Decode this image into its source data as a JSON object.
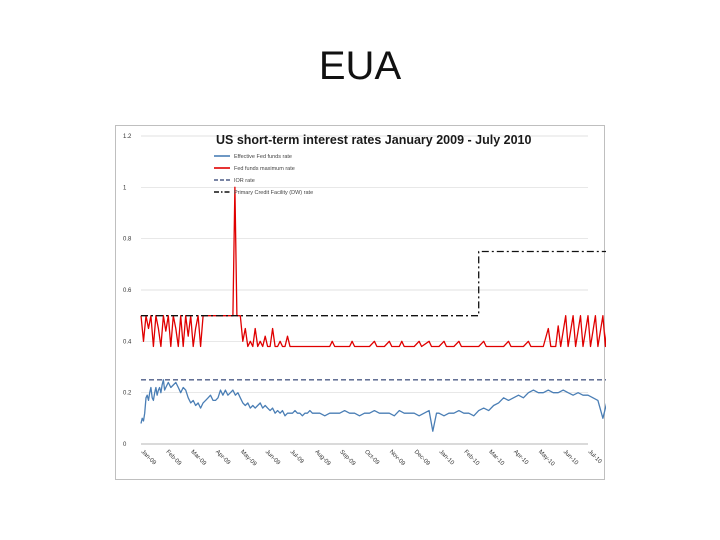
{
  "slide": {
    "title": "EUA"
  },
  "colors": {
    "effective": "#4a7eb5",
    "maximum": "#e00000",
    "ior": "#4e5d87",
    "pcf": "#111111",
    "grid": "#d9d9d9"
  },
  "chart_data": {
    "type": "line",
    "title": "US short-term interest rates January 2009 - July 2010",
    "xlabel": "",
    "ylabel": "",
    "ylim": [
      0,
      1.2
    ],
    "yticks": [
      "0",
      "0.2",
      "0.4",
      "0.6",
      "0.8",
      "1",
      "1.2"
    ],
    "grid": true,
    "legend_position": "top-left",
    "categories": [
      "Jan-09",
      "Feb-09",
      "Mar-09",
      "Apr-09",
      "May-09",
      "Jun-09",
      "Jul-09",
      "Aug-09",
      "Sep-09",
      "Oct-09",
      "Nov-09",
      "Dec-09",
      "Jan-10",
      "Feb-10",
      "Mar-10",
      "Apr-10",
      "May-10",
      "Jun-10",
      "Jul-10"
    ],
    "series": [
      {
        "name": "Effective Fed funds rate",
        "color": "#4a7eb5",
        "style": "solid",
        "values": [
          [
            0.0,
            0.08
          ],
          [
            0.05,
            0.1
          ],
          [
            0.1,
            0.09
          ],
          [
            0.15,
            0.12
          ],
          [
            0.2,
            0.18
          ],
          [
            0.25,
            0.19
          ],
          [
            0.3,
            0.17
          ],
          [
            0.35,
            0.2
          ],
          [
            0.4,
            0.22
          ],
          [
            0.45,
            0.18
          ],
          [
            0.5,
            0.17
          ],
          [
            0.55,
            0.2
          ],
          [
            0.6,
            0.22
          ],
          [
            0.65,
            0.19
          ],
          [
            0.7,
            0.21
          ],
          [
            0.75,
            0.22
          ],
          [
            0.8,
            0.2
          ],
          [
            0.85,
            0.23
          ],
          [
            0.9,
            0.25
          ],
          [
            0.95,
            0.21
          ],
          [
            1.0,
            0.22
          ],
          [
            1.1,
            0.24
          ],
          [
            1.2,
            0.22
          ],
          [
            1.3,
            0.23
          ],
          [
            1.4,
            0.24
          ],
          [
            1.5,
            0.22
          ],
          [
            1.6,
            0.2
          ],
          [
            1.7,
            0.22
          ],
          [
            1.8,
            0.21
          ],
          [
            1.9,
            0.18
          ],
          [
            2.0,
            0.16
          ],
          [
            2.1,
            0.17
          ],
          [
            2.2,
            0.15
          ],
          [
            2.3,
            0.16
          ],
          [
            2.4,
            0.14
          ],
          [
            2.5,
            0.16
          ],
          [
            2.6,
            0.17
          ],
          [
            2.7,
            0.18
          ],
          [
            2.8,
            0.19
          ],
          [
            2.9,
            0.17
          ],
          [
            3.0,
            0.17
          ],
          [
            3.1,
            0.18
          ],
          [
            3.2,
            0.21
          ],
          [
            3.3,
            0.19
          ],
          [
            3.4,
            0.21
          ],
          [
            3.5,
            0.19
          ],
          [
            3.6,
            0.2
          ],
          [
            3.7,
            0.21
          ],
          [
            3.8,
            0.19
          ],
          [
            3.9,
            0.2
          ],
          [
            4.0,
            0.18
          ],
          [
            4.1,
            0.16
          ],
          [
            4.2,
            0.15
          ],
          [
            4.3,
            0.16
          ],
          [
            4.4,
            0.14
          ],
          [
            4.5,
            0.15
          ],
          [
            4.6,
            0.14
          ],
          [
            4.7,
            0.15
          ],
          [
            4.8,
            0.16
          ],
          [
            4.9,
            0.14
          ],
          [
            5.0,
            0.15
          ],
          [
            5.1,
            0.14
          ],
          [
            5.2,
            0.13
          ],
          [
            5.3,
            0.14
          ],
          [
            5.4,
            0.12
          ],
          [
            5.5,
            0.13
          ],
          [
            5.6,
            0.12
          ],
          [
            5.7,
            0.13
          ],
          [
            5.8,
            0.11
          ],
          [
            5.9,
            0.12
          ],
          [
            6.0,
            0.12
          ],
          [
            6.1,
            0.12
          ],
          [
            6.2,
            0.13
          ],
          [
            6.3,
            0.12
          ],
          [
            6.4,
            0.12
          ],
          [
            6.5,
            0.11
          ],
          [
            6.6,
            0.12
          ],
          [
            6.7,
            0.12
          ],
          [
            6.8,
            0.13
          ],
          [
            6.9,
            0.12
          ],
          [
            7.0,
            0.12
          ],
          [
            7.2,
            0.12
          ],
          [
            7.4,
            0.11
          ],
          [
            7.6,
            0.12
          ],
          [
            7.8,
            0.12
          ],
          [
            8.0,
            0.12
          ],
          [
            8.2,
            0.13
          ],
          [
            8.4,
            0.12
          ],
          [
            8.6,
            0.12
          ],
          [
            8.8,
            0.11
          ],
          [
            9.0,
            0.12
          ],
          [
            9.2,
            0.12
          ],
          [
            9.4,
            0.13
          ],
          [
            9.6,
            0.12
          ],
          [
            9.8,
            0.12
          ],
          [
            10.0,
            0.12
          ],
          [
            10.2,
            0.11
          ],
          [
            10.4,
            0.13
          ],
          [
            10.6,
            0.12
          ],
          [
            10.8,
            0.12
          ],
          [
            11.0,
            0.12
          ],
          [
            11.2,
            0.11
          ],
          [
            11.4,
            0.12
          ],
          [
            11.6,
            0.13
          ],
          [
            11.75,
            0.05
          ],
          [
            11.9,
            0.12
          ],
          [
            12.0,
            0.12
          ],
          [
            12.2,
            0.11
          ],
          [
            12.4,
            0.12
          ],
          [
            12.6,
            0.12
          ],
          [
            12.8,
            0.13
          ],
          [
            13.0,
            0.12
          ],
          [
            13.2,
            0.12
          ],
          [
            13.4,
            0.11
          ],
          [
            13.6,
            0.13
          ],
          [
            13.8,
            0.14
          ],
          [
            14.0,
            0.13
          ],
          [
            14.2,
            0.15
          ],
          [
            14.4,
            0.16
          ],
          [
            14.6,
            0.18
          ],
          [
            14.8,
            0.17
          ],
          [
            15.0,
            0.18
          ],
          [
            15.2,
            0.19
          ],
          [
            15.4,
            0.18
          ],
          [
            15.6,
            0.2
          ],
          [
            15.8,
            0.21
          ],
          [
            16.0,
            0.2
          ],
          [
            16.2,
            0.2
          ],
          [
            16.4,
            0.21
          ],
          [
            16.6,
            0.2
          ],
          [
            16.8,
            0.2
          ],
          [
            17.0,
            0.21
          ],
          [
            17.2,
            0.2
          ],
          [
            17.4,
            0.19
          ],
          [
            17.6,
            0.2
          ],
          [
            17.8,
            0.19
          ],
          [
            18.0,
            0.19
          ],
          [
            18.2,
            0.18
          ],
          [
            18.4,
            0.17
          ],
          [
            18.6,
            0.1
          ],
          [
            18.8,
            0.18
          ],
          [
            19.0,
            0.18
          ]
        ]
      },
      {
        "name": "Fed funds maximum rate",
        "color": "#e00000",
        "style": "solid",
        "values": [
          [
            0.0,
            0.5
          ],
          [
            0.1,
            0.4
          ],
          [
            0.2,
            0.5
          ],
          [
            0.3,
            0.45
          ],
          [
            0.4,
            0.5
          ],
          [
            0.5,
            0.38
          ],
          [
            0.6,
            0.5
          ],
          [
            0.7,
            0.45
          ],
          [
            0.8,
            0.38
          ],
          [
            0.9,
            0.5
          ],
          [
            1.0,
            0.44
          ],
          [
            1.1,
            0.5
          ],
          [
            1.2,
            0.38
          ],
          [
            1.3,
            0.5
          ],
          [
            1.4,
            0.45
          ],
          [
            1.5,
            0.38
          ],
          [
            1.6,
            0.5
          ],
          [
            1.7,
            0.38
          ],
          [
            1.8,
            0.5
          ],
          [
            1.9,
            0.42
          ],
          [
            2.0,
            0.5
          ],
          [
            2.1,
            0.38
          ],
          [
            2.2,
            0.45
          ],
          [
            2.3,
            0.5
          ],
          [
            2.4,
            0.38
          ],
          [
            2.5,
            0.5
          ],
          [
            2.6,
            0.5
          ],
          [
            2.8,
            0.5
          ],
          [
            3.0,
            0.5
          ],
          [
            3.2,
            0.5
          ],
          [
            3.4,
            0.5
          ],
          [
            3.6,
            0.5
          ],
          [
            3.7,
            0.5
          ],
          [
            3.78,
            1.0
          ],
          [
            3.86,
            0.5
          ],
          [
            4.0,
            0.5
          ],
          [
            4.1,
            0.4
          ],
          [
            4.2,
            0.45
          ],
          [
            4.3,
            0.38
          ],
          [
            4.4,
            0.4
          ],
          [
            4.5,
            0.38
          ],
          [
            4.6,
            0.45
          ],
          [
            4.7,
            0.38
          ],
          [
            4.8,
            0.4
          ],
          [
            4.9,
            0.38
          ],
          [
            5.0,
            0.42
          ],
          [
            5.1,
            0.38
          ],
          [
            5.2,
            0.38
          ],
          [
            5.3,
            0.45
          ],
          [
            5.4,
            0.38
          ],
          [
            5.5,
            0.38
          ],
          [
            5.6,
            0.4
          ],
          [
            5.7,
            0.38
          ],
          [
            5.8,
            0.38
          ],
          [
            5.9,
            0.42
          ],
          [
            6.0,
            0.38
          ],
          [
            6.1,
            0.38
          ],
          [
            6.2,
            0.38
          ],
          [
            6.4,
            0.38
          ],
          [
            6.6,
            0.38
          ],
          [
            6.8,
            0.38
          ],
          [
            7.0,
            0.38
          ],
          [
            7.2,
            0.38
          ],
          [
            7.4,
            0.38
          ],
          [
            7.6,
            0.38
          ],
          [
            7.7,
            0.4
          ],
          [
            7.8,
            0.38
          ],
          [
            8.0,
            0.38
          ],
          [
            8.4,
            0.38
          ],
          [
            8.5,
            0.4
          ],
          [
            8.6,
            0.38
          ],
          [
            9.0,
            0.38
          ],
          [
            9.2,
            0.38
          ],
          [
            9.4,
            0.4
          ],
          [
            9.5,
            0.38
          ],
          [
            9.6,
            0.38
          ],
          [
            9.8,
            0.38
          ],
          [
            10.0,
            0.4
          ],
          [
            10.1,
            0.38
          ],
          [
            10.4,
            0.38
          ],
          [
            10.5,
            0.4
          ],
          [
            10.6,
            0.38
          ],
          [
            11.0,
            0.38
          ],
          [
            11.2,
            0.4
          ],
          [
            11.3,
            0.38
          ],
          [
            11.6,
            0.4
          ],
          [
            11.7,
            0.38
          ],
          [
            12.0,
            0.38
          ],
          [
            12.2,
            0.4
          ],
          [
            12.3,
            0.38
          ],
          [
            12.6,
            0.38
          ],
          [
            12.8,
            0.4
          ],
          [
            12.9,
            0.38
          ],
          [
            13.2,
            0.38
          ],
          [
            13.4,
            0.38
          ],
          [
            13.6,
            0.38
          ],
          [
            13.8,
            0.4
          ],
          [
            13.9,
            0.38
          ],
          [
            14.2,
            0.38
          ],
          [
            14.4,
            0.38
          ],
          [
            14.6,
            0.38
          ],
          [
            14.8,
            0.4
          ],
          [
            14.9,
            0.38
          ],
          [
            15.2,
            0.38
          ],
          [
            15.4,
            0.38
          ],
          [
            15.6,
            0.4
          ],
          [
            15.7,
            0.38
          ],
          [
            16.0,
            0.38
          ],
          [
            16.2,
            0.38
          ],
          [
            16.4,
            0.45
          ],
          [
            16.5,
            0.38
          ],
          [
            16.7,
            0.38
          ],
          [
            16.8,
            0.46
          ],
          [
            16.9,
            0.38
          ],
          [
            17.1,
            0.5
          ],
          [
            17.2,
            0.38
          ],
          [
            17.4,
            0.5
          ],
          [
            17.5,
            0.38
          ],
          [
            17.7,
            0.5
          ],
          [
            17.8,
            0.38
          ],
          [
            18.0,
            0.5
          ],
          [
            18.1,
            0.38
          ],
          [
            18.3,
            0.5
          ],
          [
            18.4,
            0.38
          ],
          [
            18.6,
            0.5
          ],
          [
            18.7,
            0.38
          ],
          [
            18.8,
            0.5
          ],
          [
            18.9,
            0.38
          ],
          [
            19.0,
            0.38
          ]
        ]
      },
      {
        "name": "IOR rate",
        "color": "#4e5d87",
        "style": "dashed",
        "values": [
          [
            0.0,
            0.25
          ],
          [
            19.0,
            0.25
          ]
        ]
      },
      {
        "name": "Primary Credit Facility (DW) rate",
        "color": "#111111",
        "style": "dashdot",
        "values": [
          [
            0.0,
            0.5
          ],
          [
            13.6,
            0.5
          ],
          [
            13.6,
            0.75
          ],
          [
            19.0,
            0.75
          ]
        ]
      }
    ]
  }
}
